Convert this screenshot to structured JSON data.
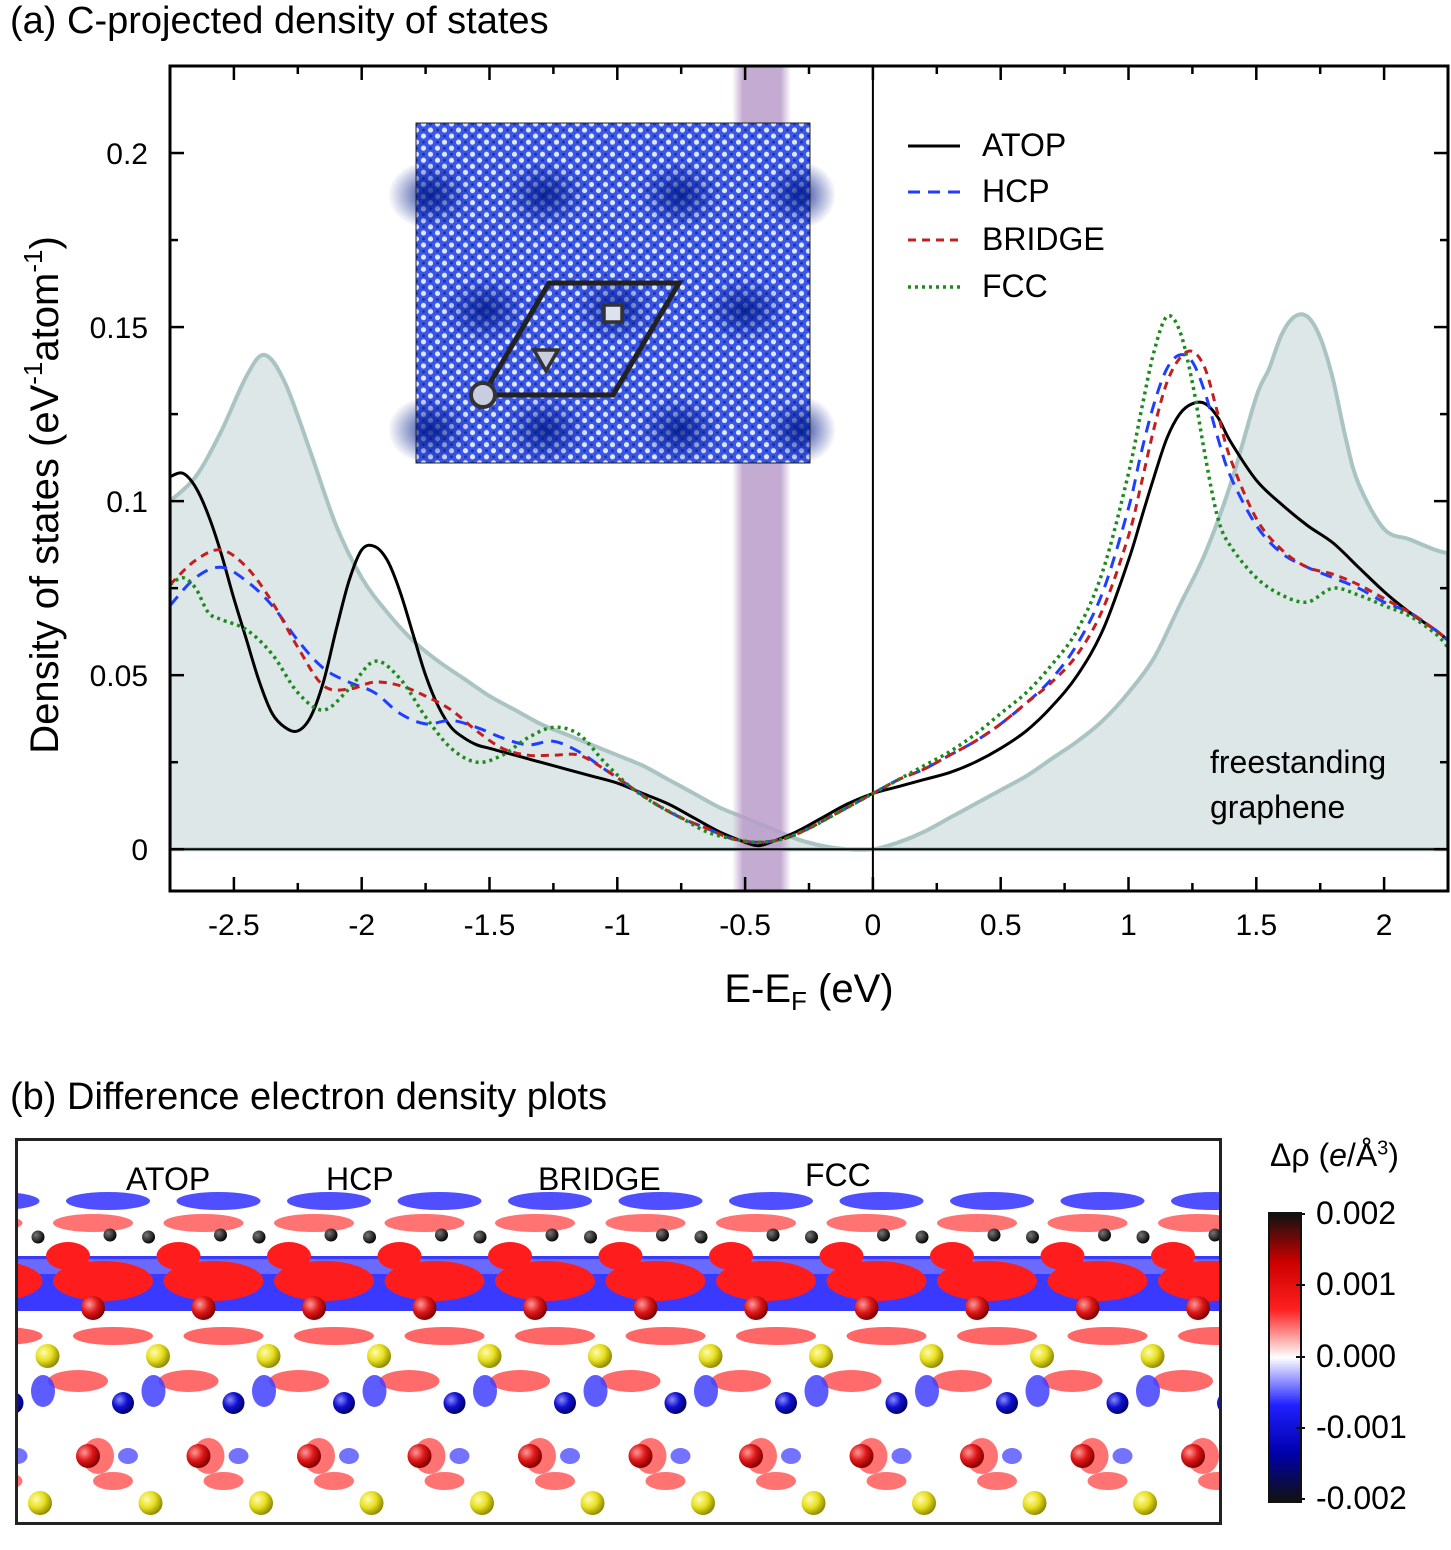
{
  "panel_a": {
    "title": "(a) C-projected density of states"
  },
  "panel_b": {
    "title": "(b) Difference electron density plots",
    "site_labels": [
      "ATOP",
      "HCP",
      "BRIDGE",
      "FCC"
    ],
    "colorbar": {
      "label": "Δρ (e/Å³)",
      "ticks": [
        "0.002",
        "0.001",
        "0.000",
        "-0.001",
        "-0.002"
      ],
      "range": [
        -0.002,
        0.002
      ],
      "colors": [
        "#111111",
        "#cc0000",
        "#ff2020",
        "#ffffff",
        "#2020ff",
        "#0000aa",
        "#111111"
      ]
    }
  },
  "chart_data": {
    "type": "line",
    "title": "(a) C-projected density of states",
    "xlabel": "E-E_F (eV)",
    "ylabel": "Density of states (eV⁻¹atom⁻¹)",
    "xlim": [
      -2.75,
      2.25
    ],
    "ylim": [
      -0.012,
      0.225
    ],
    "xticks": [
      -2.5,
      -2,
      -1.5,
      -1,
      -0.5,
      0,
      0.5,
      1,
      1.5,
      2
    ],
    "yticks": [
      0,
      0.05,
      0.1,
      0.15,
      0.2
    ],
    "xtick_labels": [
      "-2.5",
      "-2",
      "-1.5",
      "-1",
      "-0.5",
      "0",
      "0.5",
      "1",
      "1.5",
      "2"
    ],
    "ytick_labels": [
      "0",
      "0.05",
      "0.1",
      "0.15",
      "0.2"
    ],
    "highlight_band": [
      -0.55,
      -0.32
    ],
    "annotation": "freestanding graphene",
    "inset": "STM-like image of the moiré with unit cell; circle, triangle and square mark the adsorption sites",
    "background": {
      "name": "freestanding graphene",
      "color": "#a9c4c2",
      "x": [
        -2.75,
        -2.65,
        -2.55,
        -2.45,
        -2.38,
        -2.3,
        -2.2,
        -2.1,
        -2.0,
        -1.9,
        -1.8,
        -1.7,
        -1.6,
        -1.5,
        -1.4,
        -1.3,
        -1.2,
        -1.1,
        -1.0,
        -0.9,
        -0.8,
        -0.7,
        -0.6,
        -0.5,
        -0.4,
        -0.3,
        -0.2,
        -0.1,
        0.0,
        0.1,
        0.2,
        0.3,
        0.4,
        0.5,
        0.6,
        0.7,
        0.8,
        0.9,
        1.0,
        1.1,
        1.2,
        1.3,
        1.4,
        1.5,
        1.55,
        1.6,
        1.65,
        1.7,
        1.75,
        1.8,
        1.85,
        1.9,
        2.0,
        2.1,
        2.2,
        2.25
      ],
      "y": [
        0.1,
        0.107,
        0.12,
        0.136,
        0.142,
        0.134,
        0.114,
        0.093,
        0.078,
        0.068,
        0.06,
        0.054,
        0.049,
        0.044,
        0.04,
        0.036,
        0.033,
        0.03,
        0.027,
        0.024,
        0.02,
        0.016,
        0.012,
        0.009,
        0.006,
        0.003,
        0.001,
        0.0,
        0.0,
        0.002,
        0.005,
        0.009,
        0.013,
        0.017,
        0.021,
        0.026,
        0.031,
        0.037,
        0.045,
        0.055,
        0.07,
        0.085,
        0.105,
        0.13,
        0.138,
        0.148,
        0.153,
        0.153,
        0.147,
        0.135,
        0.118,
        0.105,
        0.092,
        0.089,
        0.086,
        0.085
      ]
    },
    "series": [
      {
        "name": "ATOP",
        "color": "#000000",
        "dash": "",
        "x": [
          -2.75,
          -2.7,
          -2.65,
          -2.6,
          -2.55,
          -2.5,
          -2.45,
          -2.4,
          -2.35,
          -2.3,
          -2.25,
          -2.2,
          -2.15,
          -2.1,
          -2.05,
          -2.0,
          -1.95,
          -1.9,
          -1.85,
          -1.8,
          -1.75,
          -1.7,
          -1.65,
          -1.6,
          -1.55,
          -1.5,
          -1.45,
          -1.4,
          -1.35,
          -1.3,
          -1.2,
          -1.1,
          -1.0,
          -0.9,
          -0.8,
          -0.7,
          -0.6,
          -0.5,
          -0.45,
          -0.4,
          -0.3,
          -0.2,
          -0.1,
          0.0,
          0.1,
          0.2,
          0.3,
          0.4,
          0.5,
          0.6,
          0.7,
          0.8,
          0.9,
          1.0,
          1.05,
          1.1,
          1.15,
          1.2,
          1.25,
          1.3,
          1.35,
          1.4,
          1.5,
          1.6,
          1.7,
          1.8,
          1.9,
          2.0,
          2.1,
          2.2,
          2.25
        ],
        "y": [
          0.107,
          0.108,
          0.104,
          0.096,
          0.085,
          0.072,
          0.06,
          0.048,
          0.039,
          0.035,
          0.034,
          0.038,
          0.048,
          0.063,
          0.077,
          0.086,
          0.087,
          0.083,
          0.074,
          0.062,
          0.05,
          0.041,
          0.035,
          0.032,
          0.03,
          0.029,
          0.028,
          0.027,
          0.026,
          0.025,
          0.023,
          0.021,
          0.019,
          0.016,
          0.013,
          0.009,
          0.005,
          0.002,
          0.001,
          0.002,
          0.005,
          0.009,
          0.013,
          0.016,
          0.018,
          0.02,
          0.022,
          0.025,
          0.029,
          0.034,
          0.041,
          0.05,
          0.063,
          0.083,
          0.095,
          0.107,
          0.118,
          0.125,
          0.128,
          0.128,
          0.124,
          0.117,
          0.106,
          0.099,
          0.093,
          0.088,
          0.081,
          0.074,
          0.068,
          0.063,
          0.06
        ]
      },
      {
        "name": "HCP",
        "color": "#1f3fff",
        "dash": "12,8",
        "x": [
          -2.75,
          -2.65,
          -2.55,
          -2.45,
          -2.35,
          -2.25,
          -2.15,
          -2.05,
          -1.95,
          -1.85,
          -1.75,
          -1.65,
          -1.55,
          -1.45,
          -1.35,
          -1.25,
          -1.15,
          -1.05,
          -0.95,
          -0.85,
          -0.75,
          -0.65,
          -0.55,
          -0.45,
          -0.35,
          -0.25,
          -0.15,
          -0.05,
          0.0,
          0.1,
          0.2,
          0.3,
          0.4,
          0.5,
          0.6,
          0.7,
          0.8,
          0.9,
          1.0,
          1.05,
          1.1,
          1.15,
          1.2,
          1.25,
          1.3,
          1.35,
          1.4,
          1.5,
          1.6,
          1.7,
          1.8,
          1.9,
          2.0,
          2.1,
          2.2,
          2.25
        ],
        "y": [
          0.07,
          0.078,
          0.081,
          0.077,
          0.07,
          0.06,
          0.052,
          0.048,
          0.045,
          0.039,
          0.036,
          0.037,
          0.035,
          0.032,
          0.03,
          0.031,
          0.028,
          0.023,
          0.018,
          0.013,
          0.009,
          0.006,
          0.003,
          0.002,
          0.003,
          0.006,
          0.01,
          0.014,
          0.016,
          0.02,
          0.023,
          0.027,
          0.031,
          0.036,
          0.042,
          0.049,
          0.059,
          0.074,
          0.098,
          0.114,
          0.128,
          0.138,
          0.142,
          0.14,
          0.131,
          0.118,
          0.107,
          0.093,
          0.085,
          0.081,
          0.078,
          0.075,
          0.071,
          0.068,
          0.063,
          0.06
        ]
      },
      {
        "name": "BRIDGE",
        "color": "#c41e1e",
        "dash": "8,6",
        "x": [
          -2.75,
          -2.65,
          -2.55,
          -2.45,
          -2.35,
          -2.25,
          -2.15,
          -2.05,
          -1.95,
          -1.85,
          -1.75,
          -1.65,
          -1.55,
          -1.45,
          -1.35,
          -1.25,
          -1.15,
          -1.05,
          -0.95,
          -0.85,
          -0.75,
          -0.65,
          -0.55,
          -0.45,
          -0.35,
          -0.25,
          -0.15,
          -0.05,
          0.0,
          0.1,
          0.2,
          0.3,
          0.4,
          0.5,
          0.6,
          0.7,
          0.8,
          0.9,
          1.0,
          1.05,
          1.1,
          1.15,
          1.2,
          1.25,
          1.3,
          1.35,
          1.4,
          1.5,
          1.6,
          1.7,
          1.8,
          1.9,
          2.0,
          2.1,
          2.2,
          2.25
        ],
        "y": [
          0.076,
          0.083,
          0.086,
          0.081,
          0.071,
          0.058,
          0.047,
          0.046,
          0.048,
          0.047,
          0.044,
          0.04,
          0.034,
          0.029,
          0.027,
          0.027,
          0.027,
          0.023,
          0.018,
          0.013,
          0.009,
          0.006,
          0.003,
          0.002,
          0.003,
          0.006,
          0.01,
          0.014,
          0.016,
          0.02,
          0.023,
          0.027,
          0.031,
          0.036,
          0.042,
          0.048,
          0.056,
          0.069,
          0.09,
          0.105,
          0.121,
          0.134,
          0.141,
          0.143,
          0.138,
          0.125,
          0.112,
          0.095,
          0.086,
          0.081,
          0.079,
          0.076,
          0.072,
          0.068,
          0.063,
          0.06
        ]
      },
      {
        "name": "FCC",
        "color": "#1e8a1e",
        "dash": "3,4",
        "x": [
          -2.75,
          -2.7,
          -2.65,
          -2.6,
          -2.55,
          -2.45,
          -2.35,
          -2.25,
          -2.15,
          -2.05,
          -1.95,
          -1.85,
          -1.75,
          -1.65,
          -1.55,
          -1.45,
          -1.35,
          -1.25,
          -1.15,
          -1.05,
          -0.95,
          -0.85,
          -0.75,
          -0.65,
          -0.55,
          -0.45,
          -0.35,
          -0.25,
          -0.15,
          -0.05,
          0.0,
          0.1,
          0.2,
          0.3,
          0.4,
          0.5,
          0.6,
          0.7,
          0.8,
          0.9,
          1.0,
          1.05,
          1.1,
          1.15,
          1.2,
          1.25,
          1.3,
          1.35,
          1.4,
          1.5,
          1.6,
          1.7,
          1.8,
          1.9,
          2.0,
          2.1,
          2.2,
          2.25
        ],
        "y": [
          0.076,
          0.078,
          0.075,
          0.068,
          0.066,
          0.063,
          0.056,
          0.045,
          0.04,
          0.046,
          0.054,
          0.049,
          0.038,
          0.029,
          0.025,
          0.027,
          0.032,
          0.035,
          0.033,
          0.025,
          0.018,
          0.013,
          0.009,
          0.005,
          0.003,
          0.002,
          0.003,
          0.006,
          0.01,
          0.014,
          0.016,
          0.02,
          0.024,
          0.028,
          0.033,
          0.039,
          0.045,
          0.053,
          0.063,
          0.08,
          0.108,
          0.126,
          0.143,
          0.153,
          0.149,
          0.134,
          0.113,
          0.095,
          0.087,
          0.078,
          0.073,
          0.071,
          0.075,
          0.073,
          0.07,
          0.067,
          0.062,
          0.058
        ]
      }
    ]
  }
}
